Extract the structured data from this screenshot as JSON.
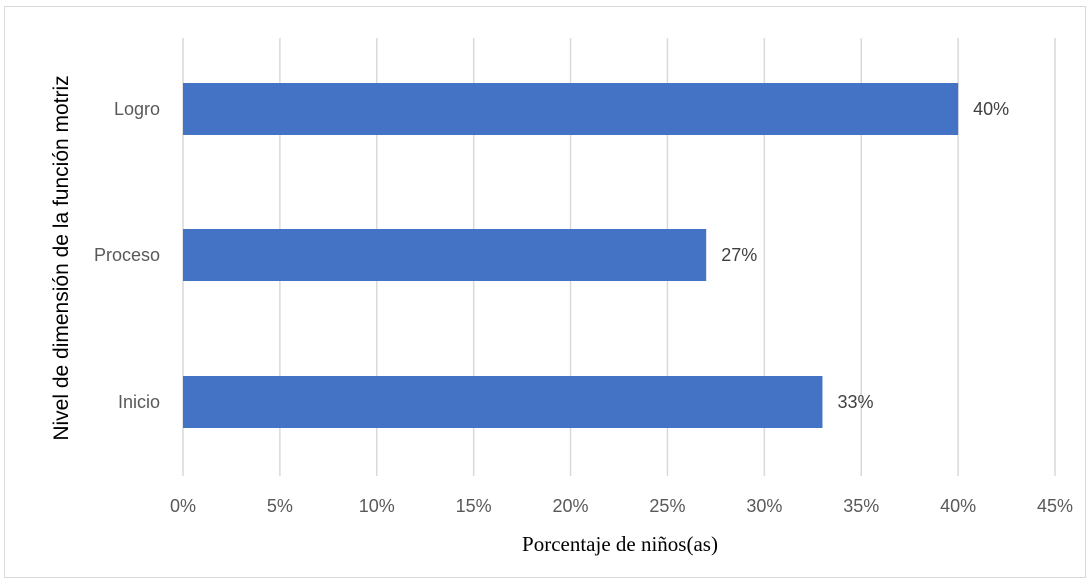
{
  "chart_data": {
    "type": "bar",
    "orientation": "horizontal",
    "categories": [
      "Logro",
      "Proceso",
      "Inicio"
    ],
    "values": [
      40,
      27,
      33
    ],
    "value_labels": [
      "40%",
      "27%",
      "33%"
    ],
    "xlabel": "Porcentaje de niños(as)",
    "ylabel": "Nivel de dimensión de la función motriz",
    "xlim": [
      0,
      45
    ],
    "xticks": [
      0,
      5,
      10,
      15,
      20,
      25,
      30,
      35,
      40,
      45
    ],
    "xtick_labels": [
      "0%",
      "5%",
      "10%",
      "15%",
      "20%",
      "25%",
      "30%",
      "35%",
      "40%",
      "45%"
    ],
    "grid": "vertical",
    "legend": "none",
    "bar_color": "#4472C4"
  }
}
